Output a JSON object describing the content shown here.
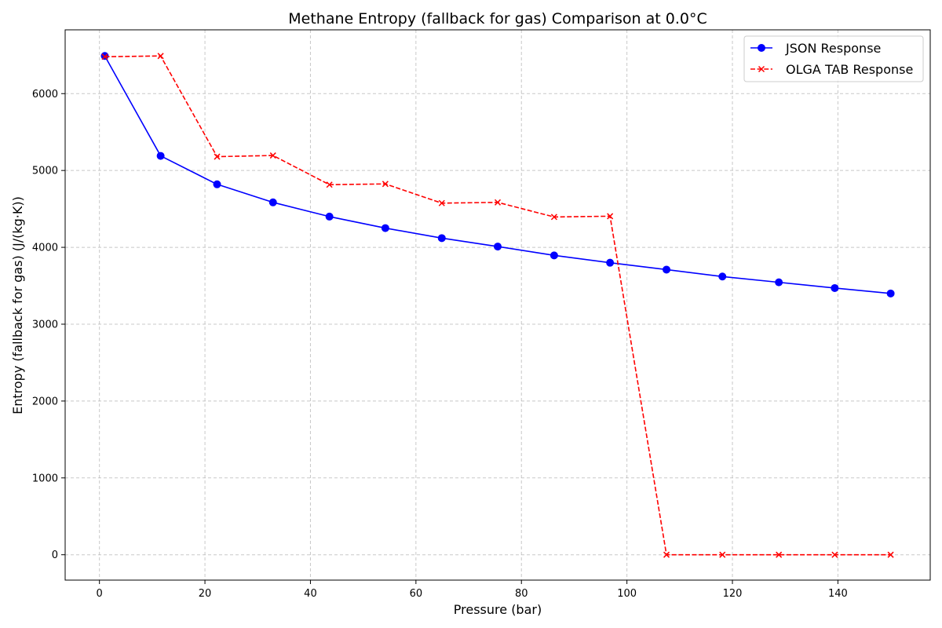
{
  "chart_data": {
    "type": "line",
    "title": "Methane Entropy (fallback for gas) Comparison at 0.0°C",
    "xlabel": "Pressure (bar)",
    "ylabel": "Entropy (fallback for gas) (J/(kg·K))",
    "xlim": [
      -6.5,
      157.5
    ],
    "ylim": [
      -330,
      6830
    ],
    "xticks": [
      0,
      20,
      40,
      60,
      80,
      100,
      120,
      140
    ],
    "yticks": [
      0,
      1000,
      2000,
      3000,
      4000,
      5000,
      6000
    ],
    "grid": true,
    "legend_position": "top-right",
    "x": [
      1.01325,
      11.6,
      22.3,
      32.9,
      43.6,
      54.2,
      64.9,
      75.5,
      86.2,
      96.8,
      107.5,
      118.1,
      128.8,
      139.4,
      150.0
    ],
    "series": [
      {
        "name": "JSON Response",
        "color": "#0000ff",
        "marker": "circle",
        "line_style": "solid",
        "values": [
          6490,
          5190,
          4820,
          4585,
          4400,
          4250,
          4120,
          4010,
          3895,
          3800,
          3710,
          3620,
          3545,
          3470,
          3400
        ]
      },
      {
        "name": "OLGA TAB Response",
        "color": "#ff0000",
        "marker": "x",
        "line_style": "dashed",
        "values": [
          6480,
          6490,
          5180,
          5195,
          4815,
          4825,
          4575,
          4585,
          4395,
          4405,
          0,
          0,
          0,
          0,
          0
        ]
      }
    ]
  }
}
